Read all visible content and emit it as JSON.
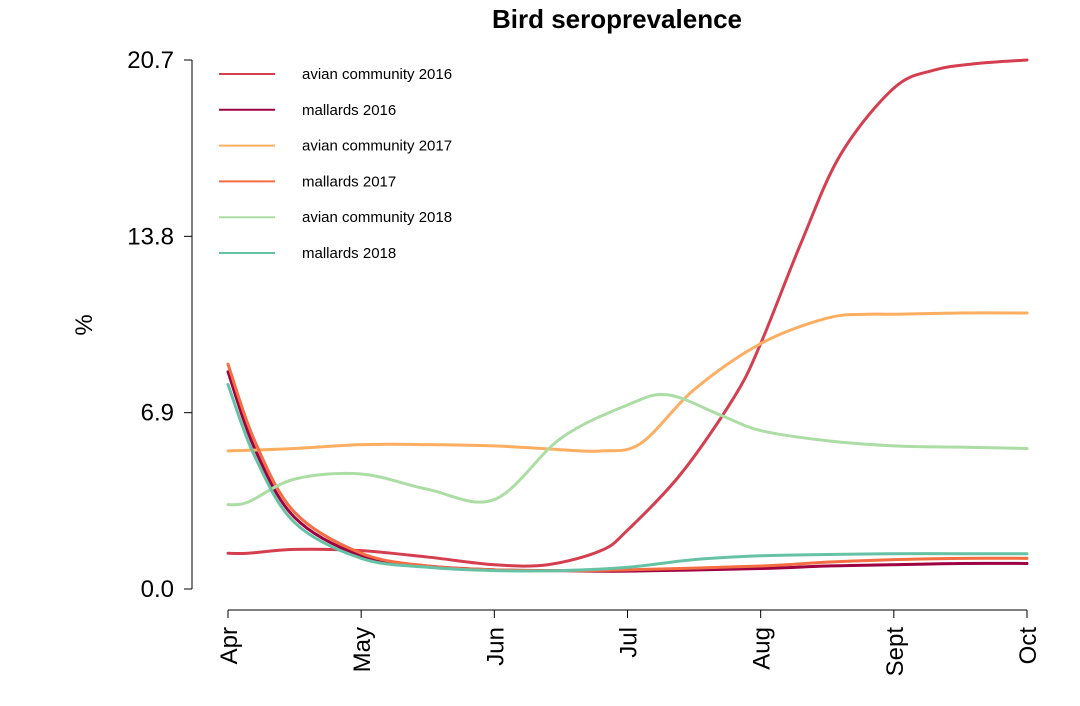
{
  "chart_data": {
    "type": "line",
    "title": "Bird seroprevalence",
    "xlabel": "",
    "ylabel": "%",
    "x_ticks": [
      "Apr",
      "May",
      "Jun",
      "Jul",
      "Aug",
      "Sept",
      "Oct"
    ],
    "xlim": [
      0,
      6
    ],
    "y_ticks": [
      "0.0",
      "6.9",
      "13.8",
      "20.7"
    ],
    "ylim": [
      0,
      20.7
    ],
    "grid": false,
    "legend_position": "top-left",
    "series": [
      {
        "name": "avian community 2016",
        "color": "#d53e4f",
        "x": [
          0,
          0.15,
          0.5,
          1.0,
          1.5,
          2.0,
          2.4,
          2.8,
          3.0,
          3.4,
          3.8,
          4.0,
          4.3,
          4.6,
          5.0,
          5.3,
          5.6,
          6.0
        ],
        "y": [
          1.4,
          1.4,
          1.55,
          1.5,
          1.25,
          0.95,
          0.95,
          1.5,
          2.3,
          4.5,
          7.5,
          9.6,
          13.5,
          17.0,
          19.6,
          20.3,
          20.55,
          20.7
        ]
      },
      {
        "name": "mallards 2016",
        "color": "#9e0142",
        "x": [
          0,
          0.2,
          0.5,
          1.0,
          1.5,
          2.0,
          2.5,
          3.0,
          4.0,
          4.5,
          5.0,
          5.5,
          6.0
        ],
        "y": [
          8.5,
          5.5,
          2.8,
          1.3,
          0.9,
          0.75,
          0.72,
          0.7,
          0.8,
          0.9,
          0.95,
          1.0,
          1.0
        ]
      },
      {
        "name": "avian community 2017",
        "color": "#fdae61",
        "x": [
          0,
          0.5,
          1.0,
          1.5,
          2.0,
          2.5,
          2.8,
          3.1,
          3.5,
          4.0,
          4.5,
          4.8,
          5.0,
          5.5,
          6.0
        ],
        "y": [
          5.4,
          5.5,
          5.65,
          5.65,
          5.6,
          5.45,
          5.4,
          5.7,
          7.8,
          9.6,
          10.6,
          10.75,
          10.75,
          10.8,
          10.8
        ]
      },
      {
        "name": "mallards 2017",
        "color": "#f46d43",
        "x": [
          0,
          0.2,
          0.5,
          1.0,
          1.5,
          2.0,
          2.5,
          3.0,
          4.0,
          4.5,
          5.0,
          5.5,
          6.0
        ],
        "y": [
          8.8,
          5.8,
          3.0,
          1.4,
          0.9,
          0.75,
          0.72,
          0.75,
          0.9,
          1.05,
          1.15,
          1.2,
          1.2
        ]
      },
      {
        "name": "avian community 2018",
        "color": "#abdda4",
        "x": [
          0,
          0.15,
          0.5,
          1.0,
          1.5,
          2.0,
          2.5,
          3.0,
          3.3,
          3.7,
          4.0,
          4.5,
          5.0,
          5.5,
          6.0
        ],
        "y": [
          3.3,
          3.4,
          4.3,
          4.5,
          3.9,
          3.5,
          5.9,
          7.2,
          7.6,
          6.8,
          6.2,
          5.8,
          5.6,
          5.55,
          5.5
        ]
      },
      {
        "name": "mallards 2018",
        "color": "#66c2a5",
        "x": [
          0,
          0.2,
          0.5,
          1.0,
          1.5,
          2.0,
          2.5,
          3.0,
          3.5,
          4.0,
          4.5,
          5.0,
          5.5,
          6.0
        ],
        "y": [
          8.0,
          5.2,
          2.6,
          1.2,
          0.85,
          0.72,
          0.72,
          0.85,
          1.15,
          1.3,
          1.35,
          1.38,
          1.38,
          1.38
        ]
      }
    ]
  }
}
